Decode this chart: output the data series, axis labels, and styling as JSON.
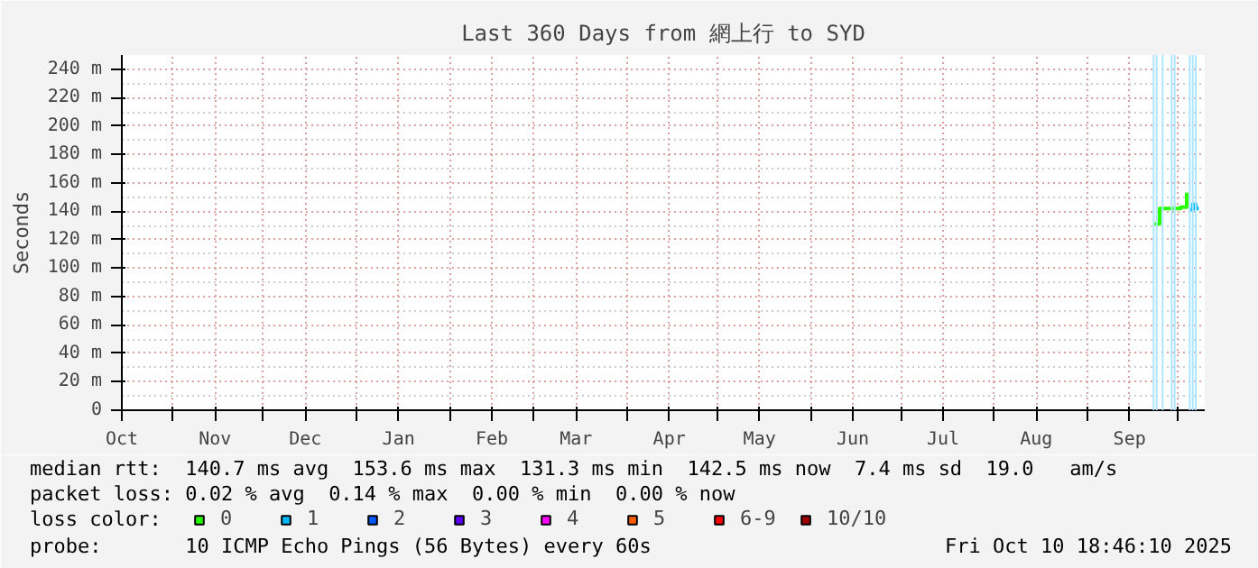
{
  "chart_data": {
    "type": "step",
    "title": "Last 360 Days from 網上行 to SYD",
    "ylabel": "Seconds",
    "legend_title": "loss color:",
    "xlim": [
      "2024-10-15",
      "2025-10-10"
    ],
    "ylim": [
      0,
      250
    ],
    "xticks": [
      {
        "value": "2024-10-15",
        "label": "Oct"
      },
      {
        "value": "2024-11-01",
        "label": null
      },
      {
        "value": "2024-11-15",
        "label": "Nov"
      },
      {
        "value": "2024-12-01",
        "label": null
      },
      {
        "value": "2024-12-15",
        "label": "Dec"
      },
      {
        "value": "2025-01-01",
        "label": null
      },
      {
        "value": "2025-01-15",
        "label": "Jan"
      },
      {
        "value": "2025-02-01",
        "label": null
      },
      {
        "value": "2025-02-15",
        "label": "Feb"
      },
      {
        "value": "2025-03-01",
        "label": null
      },
      {
        "value": "2025-03-15",
        "label": "Mar"
      },
      {
        "value": "2025-04-01",
        "label": null
      },
      {
        "value": "2025-04-15",
        "label": "Apr"
      },
      {
        "value": "2025-05-01",
        "label": null
      },
      {
        "value": "2025-05-15",
        "label": "May"
      },
      {
        "value": "2025-06-01",
        "label": null
      },
      {
        "value": "2025-06-15",
        "label": "Jun"
      },
      {
        "value": "2025-07-01",
        "label": null
      },
      {
        "value": "2025-07-15",
        "label": "Jul"
      },
      {
        "value": "2025-08-01",
        "label": null
      },
      {
        "value": "2025-08-15",
        "label": "Aug"
      },
      {
        "value": "2025-09-01",
        "label": null
      },
      {
        "value": "2025-09-15",
        "label": "Sep"
      },
      {
        "value": "2025-10-01",
        "label": null
      }
    ],
    "yticks": [
      0,
      {
        "value": 20,
        "label": "20 m"
      },
      {
        "value": 40,
        "label": "40 m"
      },
      {
        "value": 60,
        "label": "60 m"
      },
      {
        "value": 80,
        "label": "80 m"
      },
      {
        "value": 100,
        "label": "100 m"
      },
      {
        "value": 120,
        "label": "120 m"
      },
      {
        "value": 140,
        "label": "140 m"
      },
      {
        "value": 160,
        "label": "160 m"
      },
      {
        "value": 180,
        "label": "180 m"
      },
      {
        "value": 200,
        "label": "200 m"
      },
      {
        "value": 220,
        "label": "220 m"
      },
      {
        "value": 240,
        "label": "240 m"
      }
    ],
    "grid": true,
    "legend": "bottom",
    "marker": "none",
    "series": [
      {
        "name": "0",
        "color": "#26ff00",
        "x": [
          "2025-09-23",
          "2025-09-25",
          "2025-09-26",
          "2025-10-02",
          "2025-10-04"
        ],
        "values": [
          131,
          142,
          142,
          143,
          153
        ]
      },
      {
        "name": "1",
        "color": "#00b8ff",
        "x": [
          "2025-10-05",
          "2025-10-06",
          "2025-10-07",
          "2025-10-08"
        ],
        "values": [
          141,
          145,
          142,
          142
        ]
      },
      {
        "name": "2",
        "color": "#0059ff"
      },
      {
        "name": "3",
        "color": "#5e00ff"
      },
      {
        "name": "4",
        "color": "#ff00ff"
      },
      {
        "name": "5",
        "color": "#ff5e00"
      },
      {
        "name": "6-9",
        "color": "#ff0000"
      },
      {
        "name": "10/10",
        "color": "#a10000"
      }
    ],
    "ref_lines": [
      {
        "axis": "x",
        "value": "2025-09-23",
        "color": "#aee6ff"
      },
      {
        "axis": "x",
        "value": "2025-09-24",
        "color": "#aee6ff"
      },
      {
        "axis": "x",
        "value": "2025-09-26",
        "color": "#aee6ff"
      },
      {
        "axis": "x",
        "value": "2025-09-29",
        "color": "#aee6ff"
      },
      {
        "axis": "x",
        "value": "2025-09-30",
        "color": "#aee6ff"
      },
      {
        "axis": "x",
        "value": "2025-10-05",
        "color": "#aee6ff"
      },
      {
        "axis": "x",
        "value": "2025-10-06",
        "color": "#aee6ff"
      },
      {
        "axis": "x",
        "value": "2025-10-07",
        "color": "#aee6ff"
      }
    ],
    "annotations": [
      "median rtt:  140.7 ms avg  153.6 ms max  131.3 ms min  142.5 ms now  7.4 ms sd  19.0   am/s",
      "packet loss: 0.02 % avg  0.14 % max  0.00 % min  0.00 % now",
      "probe:       10 ICMP Echo Pings (56 Bytes) every 60s",
      "Fri Oct 10 18:46:10 2025"
    ]
  }
}
